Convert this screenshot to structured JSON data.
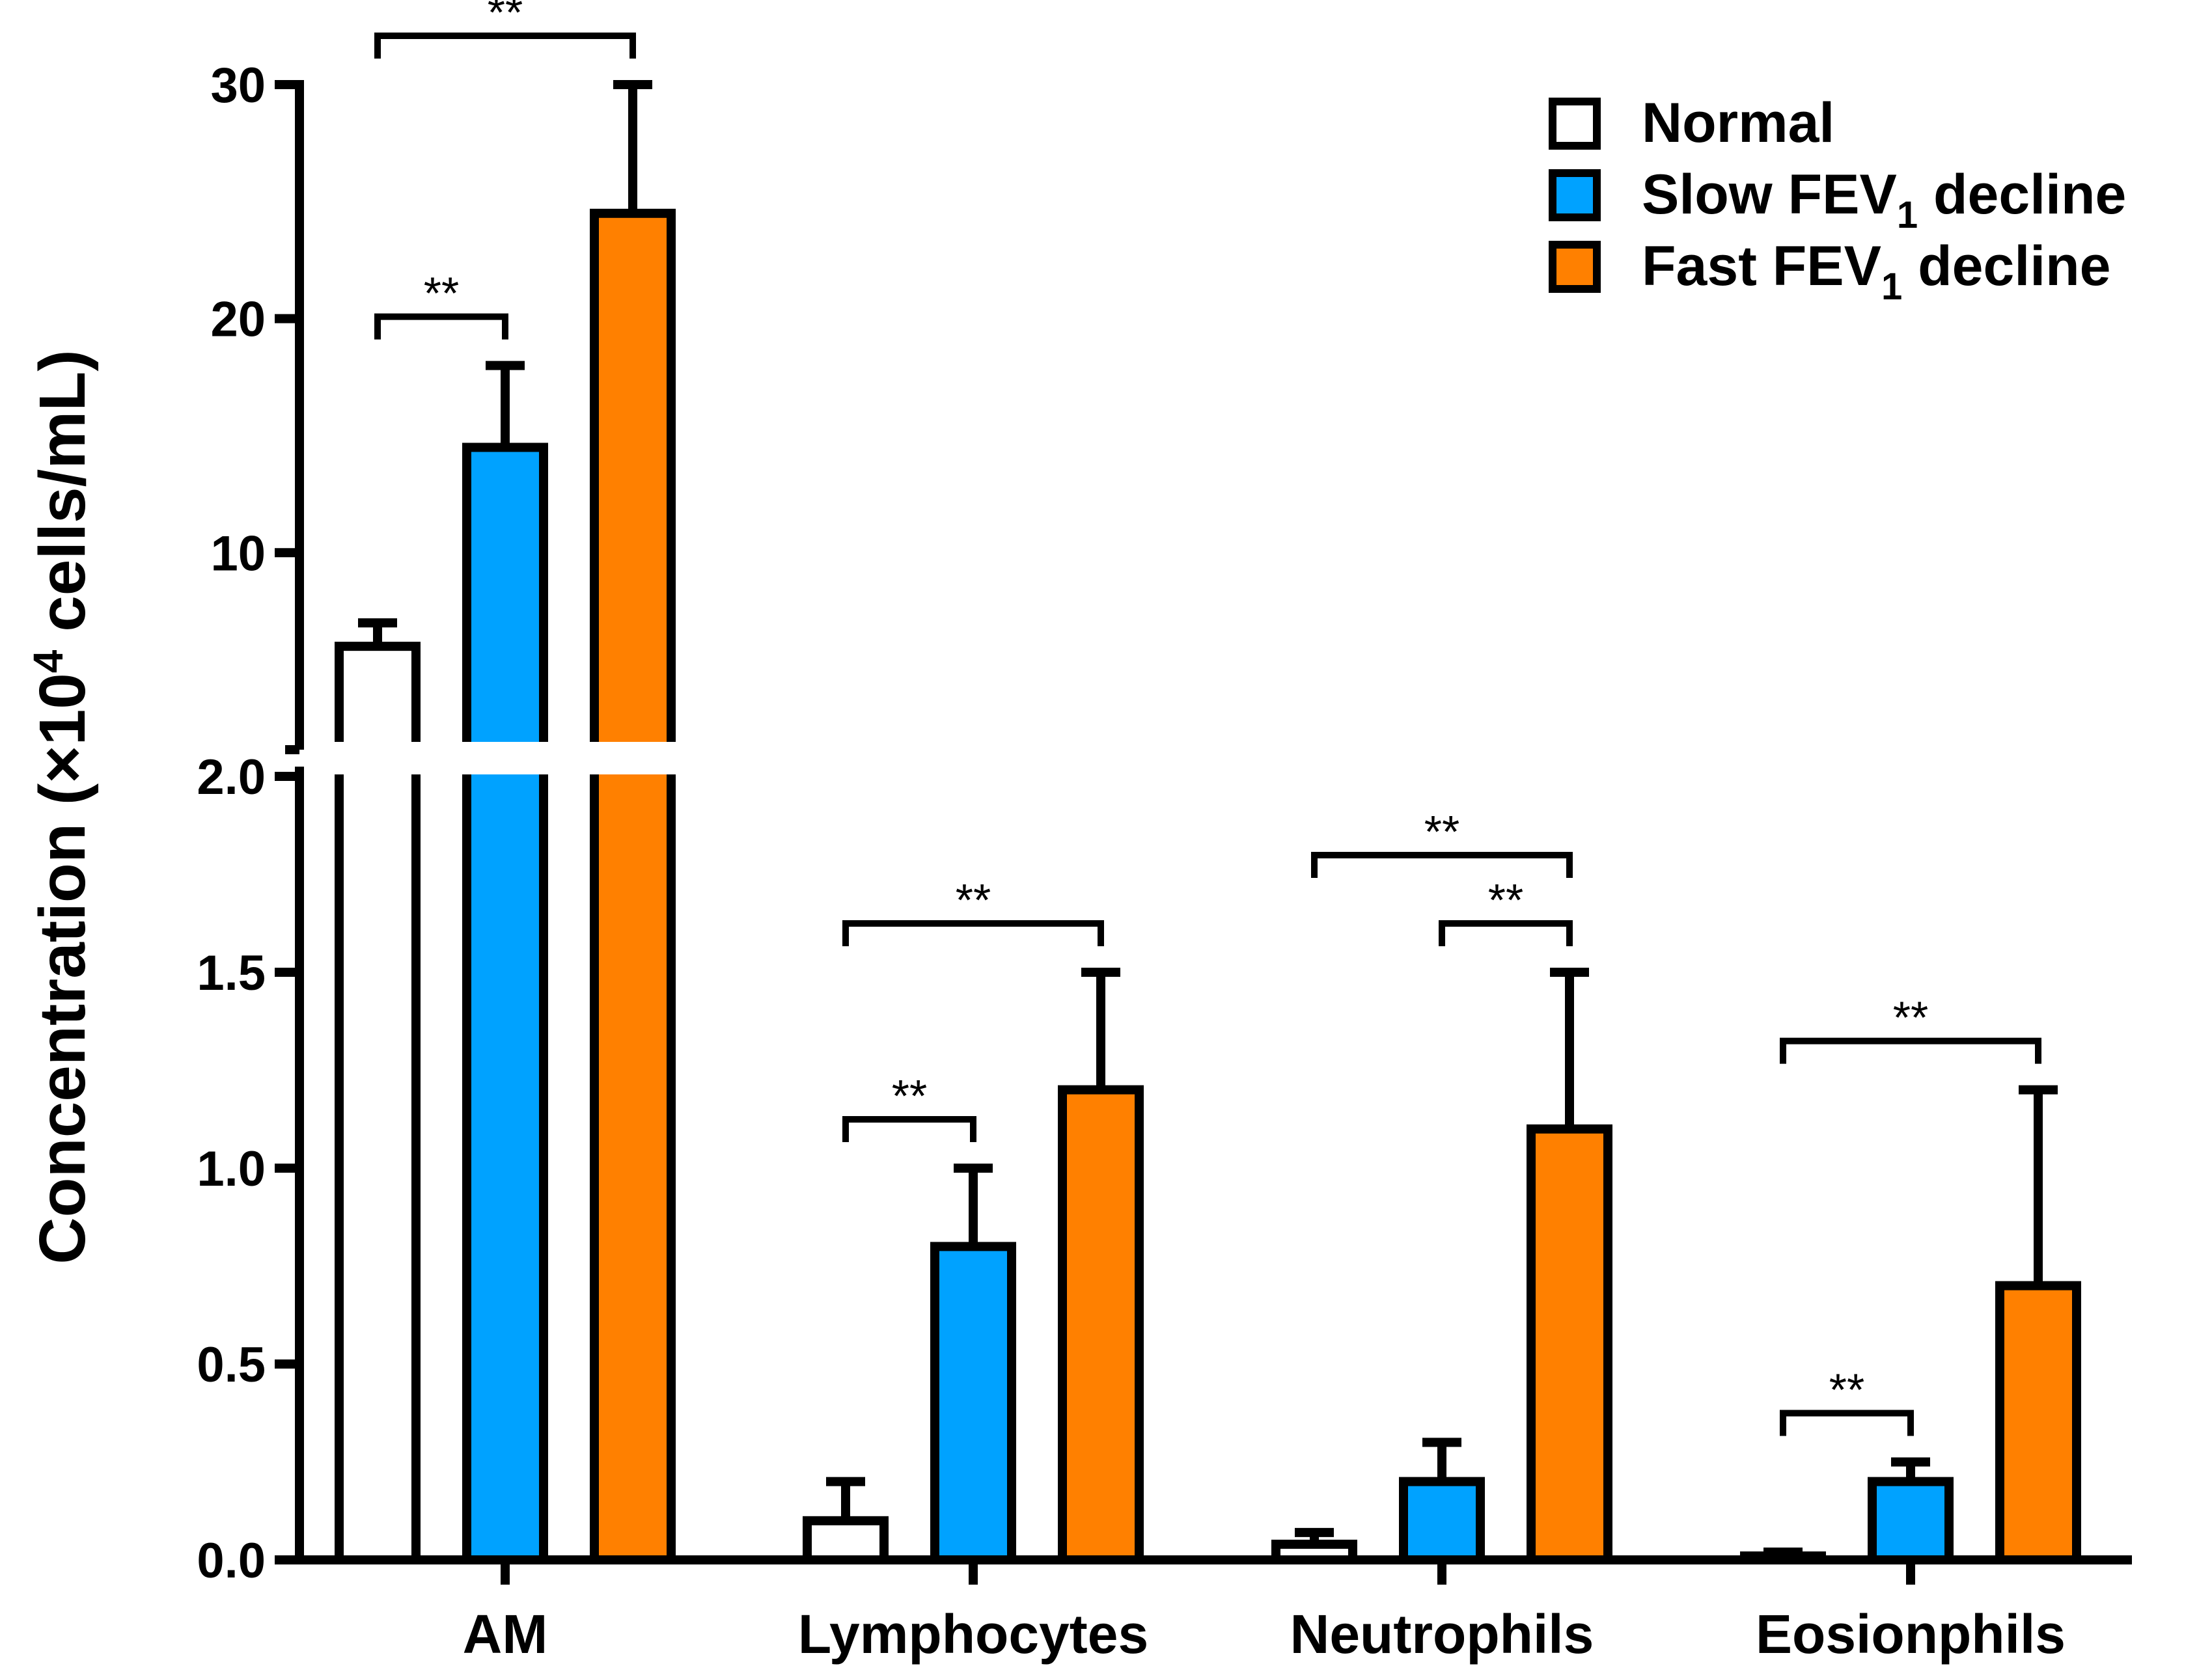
{
  "chart_data": {
    "type": "bar",
    "ylabel_parts": [
      "Concentration (×10",
      "4",
      " cells/mL)"
    ],
    "categories": [
      "AM",
      "Lymphocytes",
      "Neutrophils",
      "Eosionphils"
    ],
    "y_axis": {
      "broken": true,
      "lower_segment": {
        "range": [
          0,
          2.0
        ],
        "ticks": [
          "0.0",
          "0.5",
          "1.0",
          "1.5",
          "2.0"
        ]
      },
      "upper_segment": {
        "range": [
          2.0,
          30
        ],
        "ticks": [
          "10",
          "20",
          "30"
        ]
      }
    },
    "series": [
      {
        "name": "Normal",
        "sub": "",
        "name_suffix": "",
        "color": "#ffffff",
        "values": [
          6,
          0.1,
          0.04,
          0.01
        ],
        "errors": [
          1.0,
          0.1,
          0.03,
          0.01
        ]
      },
      {
        "name": "Slow FEV",
        "sub": "1",
        "name_suffix": " decline",
        "color": "#00a2ff",
        "values": [
          14.5,
          0.8,
          0.2,
          0.2
        ],
        "errors": [
          3.5,
          0.2,
          0.1,
          0.05
        ]
      },
      {
        "name": "Fast FEV",
        "sub": "1",
        "name_suffix": " decline",
        "color": "#ff8000",
        "values": [
          24.5,
          1.2,
          1.1,
          0.7
        ],
        "errors": [
          5.5,
          0.3,
          0.4,
          0.5
        ]
      }
    ],
    "significance": [
      {
        "category": 0,
        "from": 0,
        "to": 2,
        "label": "**"
      },
      {
        "category": 0,
        "from": 0,
        "to": 1,
        "label": "**"
      },
      {
        "category": 1,
        "from": 0,
        "to": 2,
        "label": "**"
      },
      {
        "category": 1,
        "from": 0,
        "to": 1,
        "label": "**"
      },
      {
        "category": 2,
        "from": 0,
        "to": 2,
        "label": "**"
      },
      {
        "category": 2,
        "from": 1,
        "to": 2,
        "label": "**"
      },
      {
        "category": 3,
        "from": 0,
        "to": 2,
        "label": "**"
      },
      {
        "category": 3,
        "from": 0,
        "to": 1,
        "label": "**"
      }
    ],
    "legend_position": "top-right"
  }
}
